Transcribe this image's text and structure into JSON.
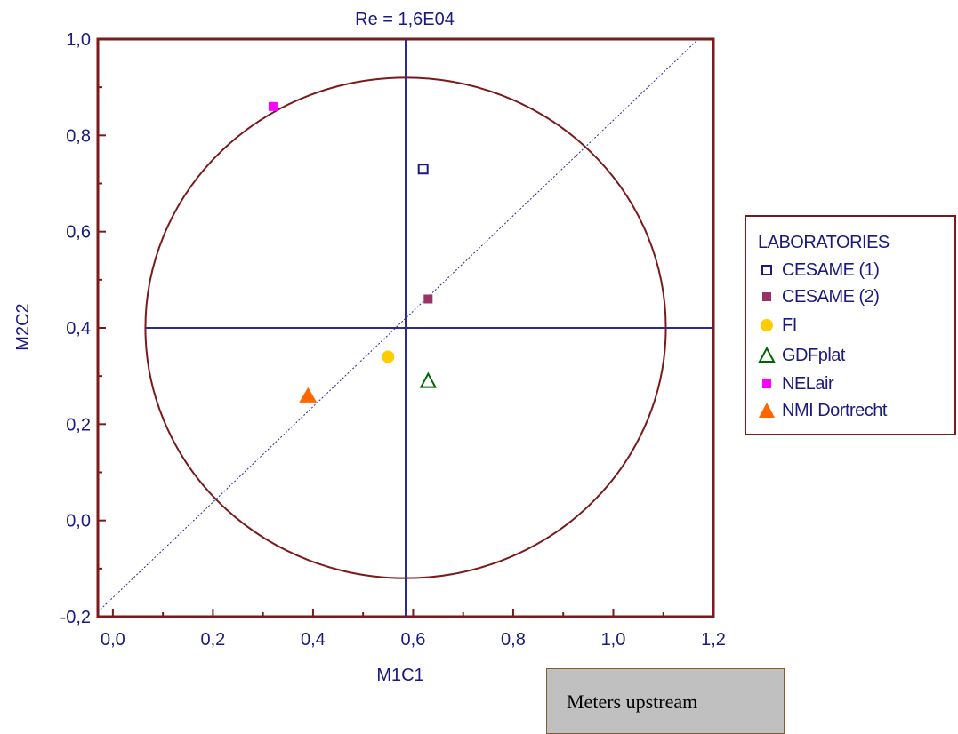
{
  "chart_data": {
    "type": "scatter",
    "title": "Re = 1,6E04",
    "xlabel": "M1C1",
    "ylabel": "M2C2",
    "xlim": [
      -0.03,
      1.2
    ],
    "ylim": [
      -0.2,
      1.0
    ],
    "x_ticks": [
      0.0,
      0.2,
      0.4,
      0.6,
      0.8,
      1.0,
      1.2
    ],
    "x_tick_labels": [
      "0,0",
      "0,2",
      "0,4",
      "0,6",
      "0,8",
      "1,0",
      "1,2"
    ],
    "y_ticks": [
      -0.2,
      0.0,
      0.2,
      0.4,
      0.6,
      0.8,
      1.0
    ],
    "y_tick_labels": [
      "-0,2",
      "0,0",
      "0,2",
      "0,4",
      "0,6",
      "0,8",
      "1,0"
    ],
    "grid": false,
    "legend_position": "right",
    "legend_title": "LABORATORIES",
    "series": [
      {
        "name": "CESAME (1)",
        "marker": "square-open",
        "color": "#1a1a80",
        "points": [
          [
            0.62,
            0.73
          ]
        ]
      },
      {
        "name": "CESAME (2)",
        "marker": "square",
        "color": "#993366",
        "points": [
          [
            0.63,
            0.46
          ]
        ]
      },
      {
        "name": "FI",
        "marker": "circle",
        "color": "#ffcc00",
        "points": [
          [
            0.55,
            0.34
          ]
        ]
      },
      {
        "name": "GDFplat",
        "marker": "triangle-open",
        "color": "#006600",
        "points": [
          [
            0.63,
            0.29
          ]
        ]
      },
      {
        "name": "NELair",
        "marker": "square",
        "color": "#ff00ff",
        "points": [
          [
            0.32,
            0.86
          ]
        ]
      },
      {
        "name": "NMI Dortrecht",
        "marker": "triangle",
        "color": "#ff6600",
        "points": [
          [
            0.39,
            0.26
          ]
        ]
      }
    ],
    "circle": {
      "center": [
        0.585,
        0.4
      ],
      "radius": 0.52,
      "color": "#7a1a1a"
    },
    "crosshair": {
      "x": 0.585,
      "y": 0.4,
      "x_extent": [
        0.065,
        1.2
      ],
      "y_extent": [
        -0.2,
        1.0
      ],
      "color": "#2b2b8f"
    },
    "diagonal": {
      "from": [
        -0.03,
        -0.19
      ],
      "to": [
        1.17,
        1.0
      ],
      "color": "#2b2b8f",
      "style": "dotted"
    }
  },
  "note_box": {
    "text": "Meters upstream"
  }
}
